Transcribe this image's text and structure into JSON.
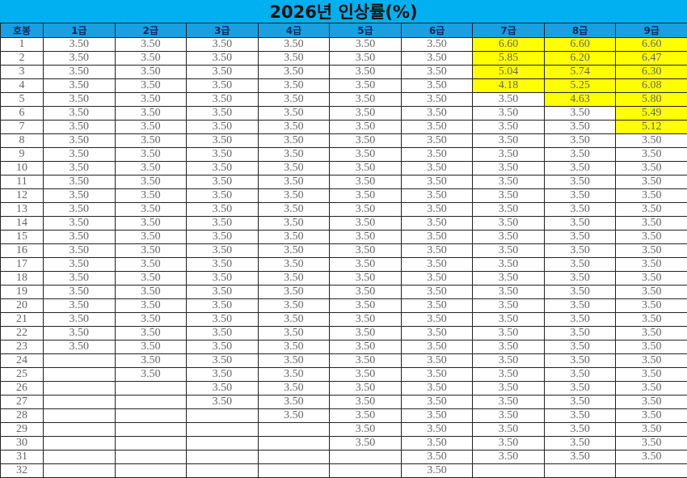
{
  "title": "2026년 인상률(%)",
  "highlight_color": "#ffff00",
  "header_color": "#1a9fe0",
  "title_color": "#00b0f0",
  "columns": [
    "호봉",
    "1급",
    "2급",
    "3급",
    "4급",
    "5급",
    "6급",
    "7급",
    "8급",
    "9급"
  ],
  "grades": [
    {
      "name": "1급",
      "values": [
        "3.50",
        "3.50",
        "3.50",
        "3.50",
        "3.50",
        "3.50",
        "3.50",
        "3.50",
        "3.50",
        "3.50",
        "3.50",
        "3.50",
        "3.50",
        "3.50",
        "3.50",
        "3.50",
        "3.50",
        "3.50",
        "3.50",
        "3.50",
        "3.50",
        "3.50",
        "3.50"
      ],
      "highlighted_rows": 0
    },
    {
      "name": "2급",
      "values": [
        "3.50",
        "3.50",
        "3.50",
        "3.50",
        "3.50",
        "3.50",
        "3.50",
        "3.50",
        "3.50",
        "3.50",
        "3.50",
        "3.50",
        "3.50",
        "3.50",
        "3.50",
        "3.50",
        "3.50",
        "3.50",
        "3.50",
        "3.50",
        "3.50",
        "3.50",
        "3.50",
        "3.50",
        "3.50"
      ],
      "highlighted_rows": 0
    },
    {
      "name": "3급",
      "values": [
        "3.50",
        "3.50",
        "3.50",
        "3.50",
        "3.50",
        "3.50",
        "3.50",
        "3.50",
        "3.50",
        "3.50",
        "3.50",
        "3.50",
        "3.50",
        "3.50",
        "3.50",
        "3.50",
        "3.50",
        "3.50",
        "3.50",
        "3.50",
        "3.50",
        "3.50",
        "3.50",
        "3.50",
        "3.50",
        "3.50",
        "3.50"
      ],
      "highlighted_rows": 0
    },
    {
      "name": "4급",
      "values": [
        "3.50",
        "3.50",
        "3.50",
        "3.50",
        "3.50",
        "3.50",
        "3.50",
        "3.50",
        "3.50",
        "3.50",
        "3.50",
        "3.50",
        "3.50",
        "3.50",
        "3.50",
        "3.50",
        "3.50",
        "3.50",
        "3.50",
        "3.50",
        "3.50",
        "3.50",
        "3.50",
        "3.50",
        "3.50",
        "3.50",
        "3.50",
        "3.50"
      ],
      "highlighted_rows": 0
    },
    {
      "name": "5급",
      "values": [
        "3.50",
        "3.50",
        "3.50",
        "3.50",
        "3.50",
        "3.50",
        "3.50",
        "3.50",
        "3.50",
        "3.50",
        "3.50",
        "3.50",
        "3.50",
        "3.50",
        "3.50",
        "3.50",
        "3.50",
        "3.50",
        "3.50",
        "3.50",
        "3.50",
        "3.50",
        "3.50",
        "3.50",
        "3.50",
        "3.50",
        "3.50",
        "3.50",
        "3.50",
        "3.50"
      ],
      "highlighted_rows": 0
    },
    {
      "name": "6급",
      "values": [
        "3.50",
        "3.50",
        "3.50",
        "3.50",
        "3.50",
        "3.50",
        "3.50",
        "3.50",
        "3.50",
        "3.50",
        "3.50",
        "3.50",
        "3.50",
        "3.50",
        "3.50",
        "3.50",
        "3.50",
        "3.50",
        "3.50",
        "3.50",
        "3.50",
        "3.50",
        "3.50",
        "3.50",
        "3.50",
        "3.50",
        "3.50",
        "3.50",
        "3.50",
        "3.50",
        "3.50",
        "3.50"
      ],
      "highlighted_rows": 0
    },
    {
      "name": "7급",
      "values": [
        "6.60",
        "5.85",
        "5.04",
        "4.18",
        "3.50",
        "3.50",
        "3.50",
        "3.50",
        "3.50",
        "3.50",
        "3.50",
        "3.50",
        "3.50",
        "3.50",
        "3.50",
        "3.50",
        "3.50",
        "3.50",
        "3.50",
        "3.50",
        "3.50",
        "3.50",
        "3.50",
        "3.50",
        "3.50",
        "3.50",
        "3.50",
        "3.50",
        "3.50",
        "3.50",
        "3.50"
      ],
      "highlighted_rows": 4
    },
    {
      "name": "8급",
      "values": [
        "6.60",
        "6.20",
        "5.74",
        "5.25",
        "4.63",
        "3.50",
        "3.50",
        "3.50",
        "3.50",
        "3.50",
        "3.50",
        "3.50",
        "3.50",
        "3.50",
        "3.50",
        "3.50",
        "3.50",
        "3.50",
        "3.50",
        "3.50",
        "3.50",
        "3.50",
        "3.50",
        "3.50",
        "3.50",
        "3.50",
        "3.50",
        "3.50",
        "3.50",
        "3.50",
        "3.50"
      ],
      "highlighted_rows": 5
    },
    {
      "name": "9급",
      "values": [
        "6.60",
        "6.47",
        "6.30",
        "6.08",
        "5.80",
        "5.49",
        "5.12",
        "3.50",
        "3.50",
        "3.50",
        "3.50",
        "3.50",
        "3.50",
        "3.50",
        "3.50",
        "3.50",
        "3.50",
        "3.50",
        "3.50",
        "3.50",
        "3.50",
        "3.50",
        "3.50",
        "3.50",
        "3.50",
        "3.50",
        "3.50",
        "3.50",
        "3.50",
        "3.50",
        "3.50"
      ],
      "highlighted_rows": 7
    }
  ],
  "steps": [
    "1",
    "2",
    "3",
    "4",
    "5",
    "6",
    "7",
    "8",
    "9",
    "10",
    "11",
    "12",
    "13",
    "14",
    "15",
    "16",
    "17",
    "18",
    "19",
    "20",
    "21",
    "22",
    "23",
    "24",
    "25",
    "26",
    "27",
    "28",
    "29",
    "30",
    "31",
    "32"
  ]
}
